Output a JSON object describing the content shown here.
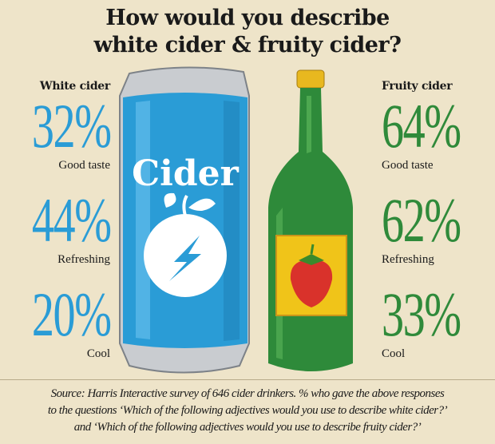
{
  "title": {
    "line1": "How would you describe",
    "line2": "white cider & fruity cider?"
  },
  "white": {
    "heading": "White cider",
    "color": "#2a9cd6",
    "stats": [
      {
        "value": "32%",
        "label": "Good taste"
      },
      {
        "value": "44%",
        "label": "Refreshing"
      },
      {
        "value": "20%",
        "label": "Cool"
      }
    ]
  },
  "fruity": {
    "heading": "Fruity cider",
    "color": "#2f8a3a",
    "stats": [
      {
        "value": "64%",
        "label": "Good taste"
      },
      {
        "value": "62%",
        "label": "Refreshing"
      },
      {
        "value": "33%",
        "label": "Cool"
      }
    ]
  },
  "can": {
    "text": "Cider",
    "icon": "apple-lightning-icon"
  },
  "bottle": {
    "icon": "strawberry-icon"
  },
  "source": {
    "line1": "Source: Harris Interactive survey of 646 cider drinkers. % who gave the above responses",
    "line2": "to the questions ‘Which of the following adjectives would you use to describe white cider?’",
    "line3": "and ‘Which of the following adjectives would you use to describe fruity cider?’"
  }
}
